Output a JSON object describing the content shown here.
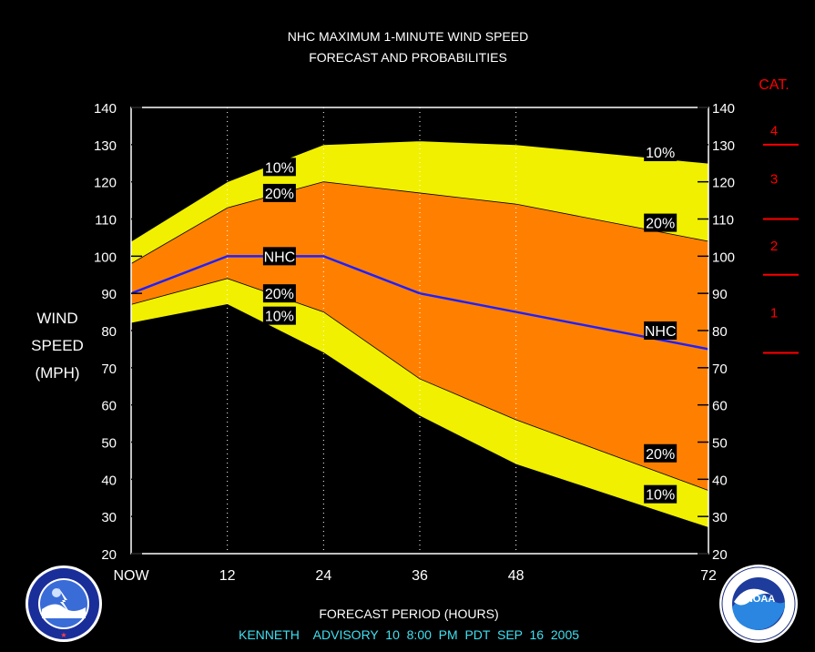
{
  "chart_data": {
    "type": "area",
    "title": "NHC MAXIMUM 1-MINUTE WIND SPEED",
    "subtitle": "FORECAST AND PROBABILITIES",
    "xlabel": "FORECAST PERIOD (HOURS)",
    "ylabel_lines": [
      "WIND",
      "SPEED",
      "(MPH)"
    ],
    "footer": "KENNETH    ADVISORY  10  8:00  PM  PDT  SEP  16  2005",
    "x_ticks": [
      0,
      12,
      24,
      36,
      48,
      72
    ],
    "x_tick_labels": [
      "NOW",
      "12",
      "24",
      "36",
      "48",
      "72"
    ],
    "xlim": [
      0,
      72
    ],
    "ylim": [
      20,
      140
    ],
    "y_ticks": [
      20,
      30,
      40,
      50,
      60,
      70,
      80,
      90,
      100,
      110,
      120,
      130,
      140
    ],
    "x": [
      0,
      12,
      24,
      36,
      48,
      72
    ],
    "series": [
      {
        "name": "10%",
        "role": "upper-10",
        "values": [
          104,
          120,
          130,
          131,
          130,
          125
        ]
      },
      {
        "name": "20%",
        "role": "upper-20",
        "values": [
          98,
          113,
          120,
          117,
          114,
          104
        ]
      },
      {
        "name": "NHC",
        "role": "nhc",
        "values": [
          90,
          100,
          100,
          90,
          85,
          75
        ]
      },
      {
        "name": "20%",
        "role": "lower-20",
        "values": [
          87,
          94,
          85,
          67,
          56,
          37
        ]
      },
      {
        "name": "10%",
        "role": "lower-10",
        "values": [
          82,
          87,
          74,
          57,
          44,
          27
        ]
      }
    ],
    "band_labels": [
      {
        "text": "10%",
        "x": 18.5,
        "y": 124
      },
      {
        "text": "20%",
        "x": 18.5,
        "y": 117
      },
      {
        "text": "NHC",
        "x": 18.5,
        "y": 100
      },
      {
        "text": "20%",
        "x": 18.5,
        "y": 90
      },
      {
        "text": "10%",
        "x": 18.5,
        "y": 84
      },
      {
        "text": "10%",
        "x": 66,
        "y": 128
      },
      {
        "text": "20%",
        "x": 66,
        "y": 109
      },
      {
        "text": "NHC",
        "x": 66,
        "y": 80
      },
      {
        "text": "20%",
        "x": 66,
        "y": 47
      },
      {
        "text": "10%",
        "x": 66,
        "y": 36
      }
    ],
    "category_title": "CAT.",
    "categories": [
      {
        "label": "4",
        "mid": 134
      },
      {
        "label": "3",
        "mid": 121
      },
      {
        "label": "2",
        "mid": 103
      },
      {
        "label": "1",
        "mid": 85
      }
    ],
    "category_boundaries": [
      130,
      110,
      95,
      74
    ],
    "colors": {
      "background": "#000000",
      "outer_band": "#f0f000",
      "inner_band": "#ff8000",
      "nhc_line": "#2020ff",
      "category": "#ff0000",
      "footer": "#40e0f0",
      "grid": "#ffffff"
    },
    "logo_left": "NOAA National Weather Service",
    "logo_right": "NOAA U.S. Department of Commerce"
  }
}
